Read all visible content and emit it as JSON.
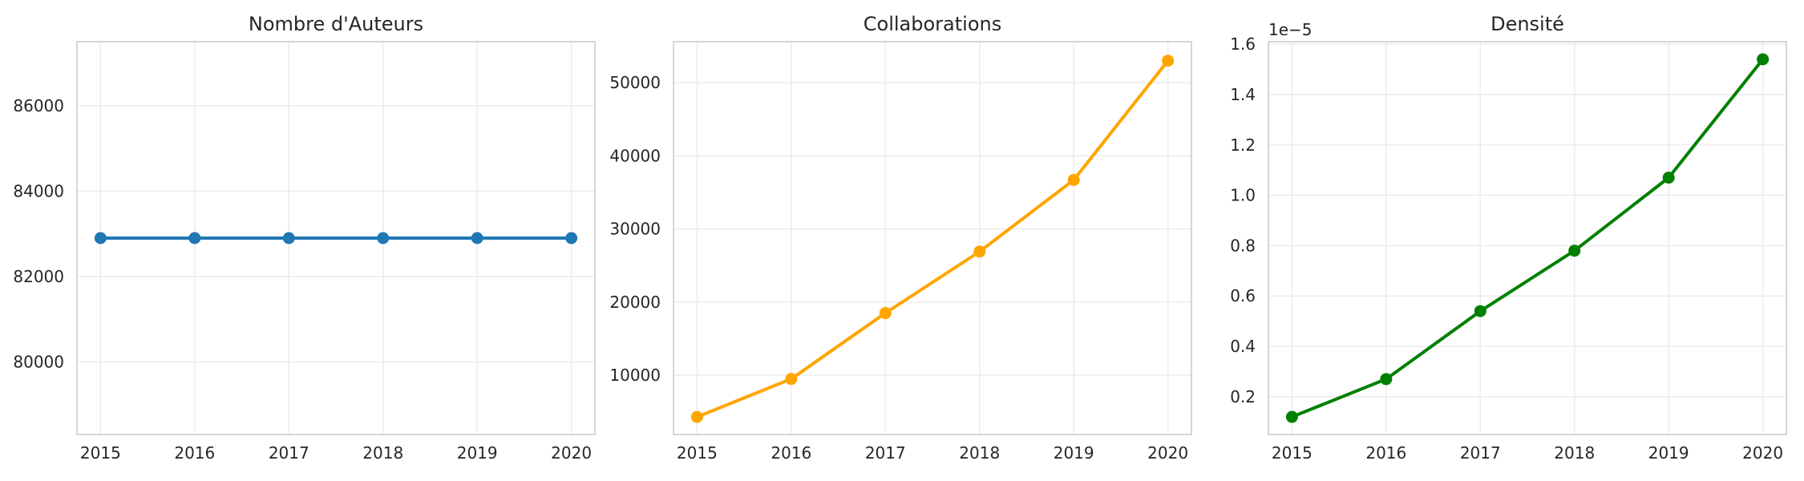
{
  "chart_data": [
    {
      "type": "line",
      "title": "Nombre d'Auteurs",
      "xlabel": "",
      "ylabel": "",
      "x": [
        2015,
        2016,
        2017,
        2018,
        2019,
        2020
      ],
      "x_tick_labels": [
        "2015",
        "2016",
        "2017",
        "2018",
        "2019",
        "2020"
      ],
      "series": [
        {
          "color": "#1f77b4",
          "values": [
            82900,
            82900,
            82900,
            82900,
            82900,
            82900
          ]
        }
      ],
      "xlim": [
        2014.75,
        2020.25
      ],
      "ylim": [
        78300,
        87500
      ],
      "y_ticks": [
        80000,
        82000,
        84000,
        86000
      ],
      "y_tick_labels": [
        "80000",
        "82000",
        "84000",
        "86000"
      ],
      "y_offset_label": "",
      "grid": true
    },
    {
      "type": "line",
      "title": "Collaborations",
      "xlabel": "",
      "ylabel": "",
      "x": [
        2015,
        2016,
        2017,
        2018,
        2019,
        2020
      ],
      "x_tick_labels": [
        "2015",
        "2016",
        "2017",
        "2018",
        "2019",
        "2020"
      ],
      "series": [
        {
          "color": "#ffa500",
          "values": [
            4300,
            9500,
            18500,
            26900,
            36700,
            53000
          ]
        }
      ],
      "xlim": [
        2014.75,
        2020.25
      ],
      "ylim": [
        1900,
        55600
      ],
      "y_ticks": [
        10000,
        20000,
        30000,
        40000,
        50000
      ],
      "y_tick_labels": [
        "10000",
        "20000",
        "30000",
        "40000",
        "50000"
      ],
      "y_offset_label": "",
      "grid": true
    },
    {
      "type": "line",
      "title": "Densité",
      "xlabel": "",
      "ylabel": "",
      "x": [
        2015,
        2016,
        2017,
        2018,
        2019,
        2020
      ],
      "x_tick_labels": [
        "2015",
        "2016",
        "2017",
        "2018",
        "2019",
        "2020"
      ],
      "series": [
        {
          "color": "#008000",
          "values": [
            0.12,
            0.27,
            0.54,
            0.78,
            1.07,
            1.54
          ]
        }
      ],
      "xlim": [
        2014.75,
        2020.25
      ],
      "ylim": [
        0.05,
        1.61
      ],
      "y_ticks": [
        0.2,
        0.4,
        0.6,
        0.8,
        1.0,
        1.2,
        1.4,
        1.6
      ],
      "y_tick_labels": [
        "0.2",
        "0.4",
        "0.6",
        "0.8",
        "1.0",
        "1.2",
        "1.4",
        "1.6"
      ],
      "y_offset_label": "1e−5",
      "grid": true
    }
  ]
}
